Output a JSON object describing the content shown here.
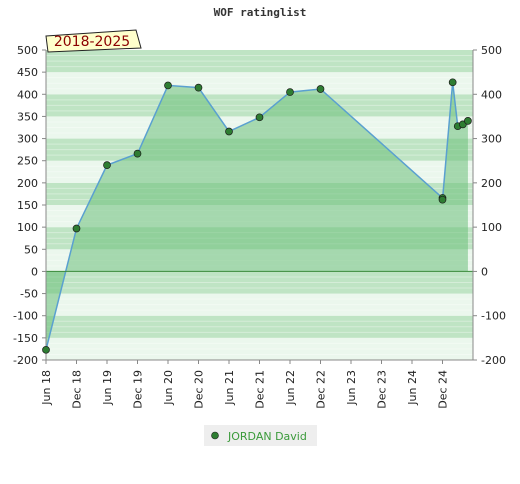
{
  "chart_data": {
    "type": "area",
    "title": "WOF ratinglist",
    "period_label": "2018-2025",
    "ylim": [
      -200,
      500
    ],
    "y_ticks": [
      500,
      450,
      400,
      350,
      300,
      250,
      200,
      150,
      100,
      50,
      0,
      -50,
      -100,
      -150,
      -200
    ],
    "y_ticks_right": [
      500,
      400,
      300,
      200,
      100,
      0,
      -100,
      -200
    ],
    "x_ticks": [
      "Jun 18",
      "Dec 18",
      "Jun 19",
      "Dec 19",
      "Jun 20",
      "Dec 20",
      "Jun 21",
      "Dec 21",
      "Jun 22",
      "Dec 22",
      "Jun 23",
      "Dec 23",
      "Jun 24",
      "Dec 24"
    ],
    "xlabel": "",
    "ylabel": "",
    "legend_position": "bottom",
    "grid": true,
    "colors": {
      "area_fill": "#6cc07a",
      "line": "#5aa0d0",
      "marker": "#2e7d32",
      "band_dark": "#bfe4c4",
      "band_light": "#ebf7ed",
      "label_box": "#ffffcc"
    },
    "series": [
      {
        "name": "JORDAN David",
        "points": [
          {
            "x": "Jun 18",
            "y": -177
          },
          {
            "x": "Dec 18",
            "y": 97
          },
          {
            "x": "Jun 19",
            "y": 240
          },
          {
            "x": "Dec 19",
            "y": 266
          },
          {
            "x": "Jun 20",
            "y": 420
          },
          {
            "x": "Dec 20",
            "y": 415
          },
          {
            "x": "Jun 21",
            "y": 316
          },
          {
            "x": "Dec 21",
            "y": 348
          },
          {
            "x": "Jun 22",
            "y": 405
          },
          {
            "x": "Dec 22",
            "y": 412
          },
          {
            "x": "Dec 24",
            "y": 166
          },
          {
            "x": "Dec 24",
            "y": 162
          },
          {
            "x": "Feb 25",
            "y": 427
          },
          {
            "x": "Mar 25",
            "y": 328
          },
          {
            "x": "Apr 25",
            "y": 332
          },
          {
            "x": "May 25",
            "y": 340
          }
        ]
      }
    ]
  }
}
